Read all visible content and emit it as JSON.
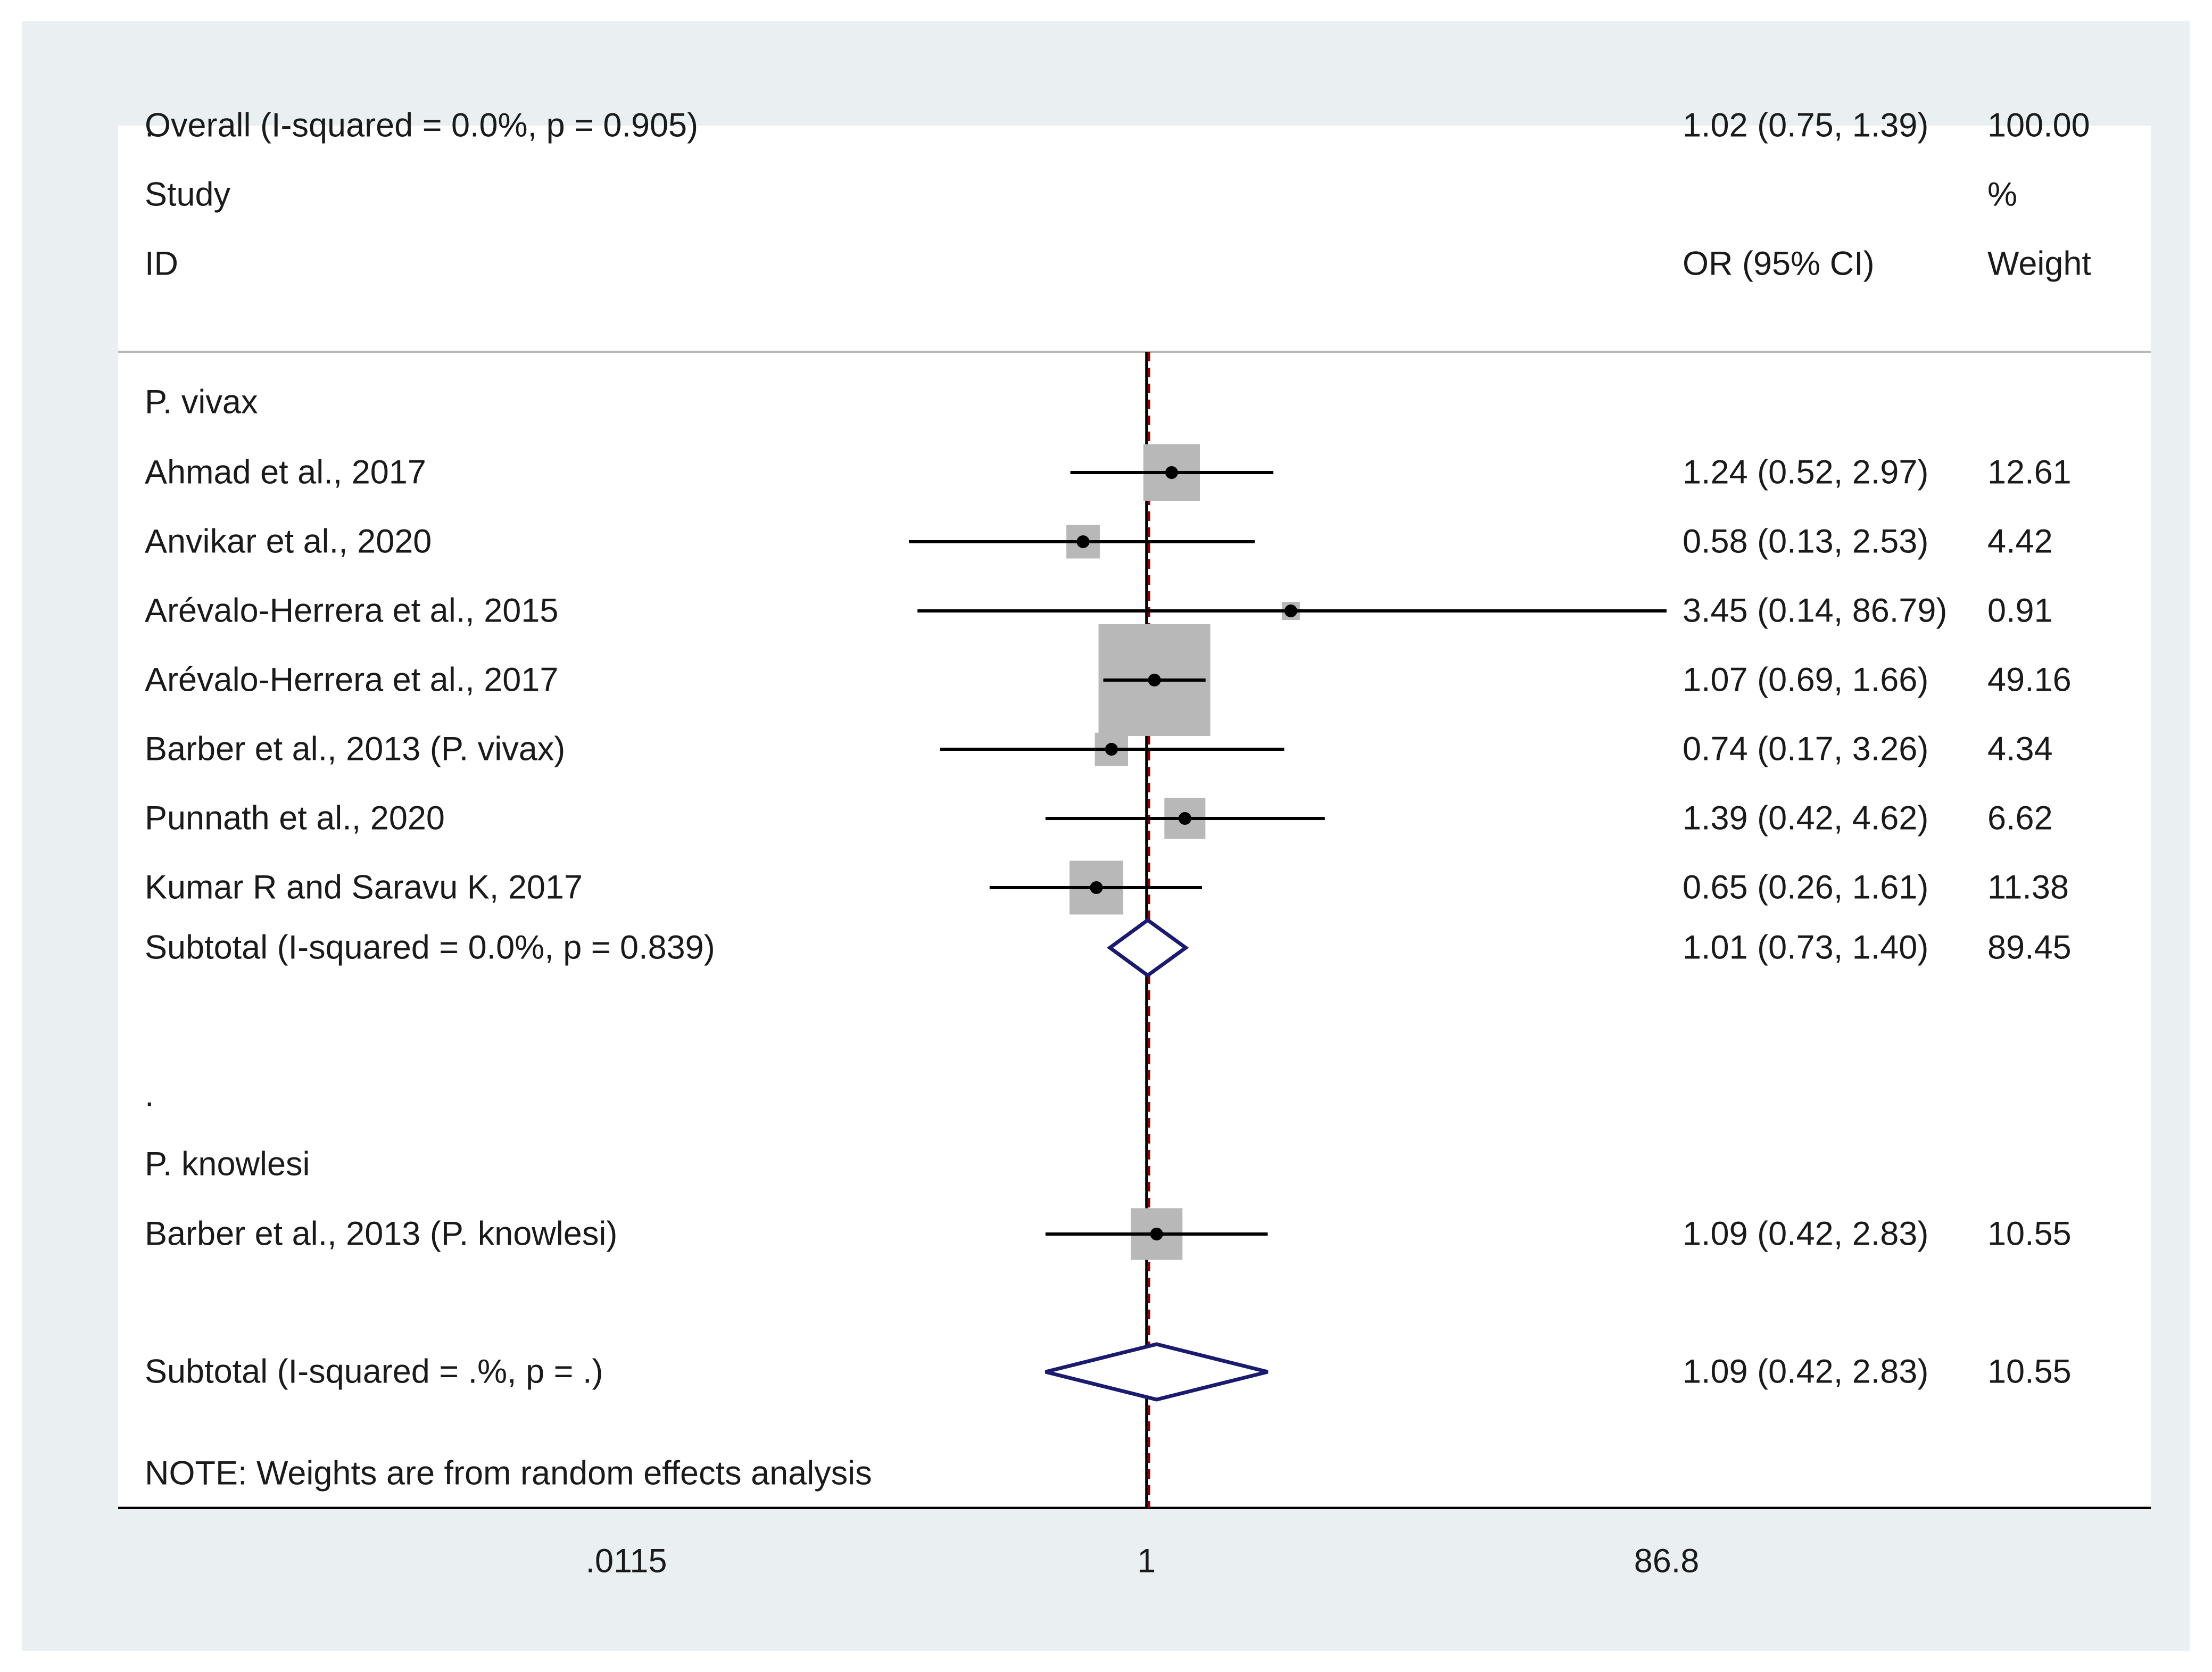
{
  "chart_data": {
    "type": "forest",
    "headers": {
      "study_line1": "Study",
      "study_line2": "ID",
      "estimate": "OR (95% CI)",
      "weight_line1": "%",
      "weight_line2": "Weight"
    },
    "x_axis": {
      "scale": "log",
      "range": [
        0.0115,
        86.8
      ],
      "ticks": [
        ".0115",
        "1",
        "86.8"
      ],
      "tick_values": [
        0.0115,
        1,
        86.8
      ],
      "null_line": 1
    },
    "pooled_estimate_line": 1.02,
    "rows": [
      {
        "kind": "group",
        "label": "P. vivax"
      },
      {
        "kind": "study",
        "label": "Ahmad et al., 2017",
        "or": 1.24,
        "lo": 0.52,
        "hi": 2.97,
        "ci_text": "1.24 (0.52, 2.97)",
        "weight": 12.61,
        "weight_text": "12.61"
      },
      {
        "kind": "study",
        "label": "Anvikar et al., 2020",
        "or": 0.58,
        "lo": 0.13,
        "hi": 2.53,
        "ci_text": "0.58 (0.13, 2.53)",
        "weight": 4.42,
        "weight_text": "4.42"
      },
      {
        "kind": "study",
        "label": "Arévalo-Herrera et al., 2015",
        "or": 3.45,
        "lo": 0.14,
        "hi": 86.79,
        "ci_text": "3.45 (0.14, 86.79)",
        "weight": 0.91,
        "weight_text": "0.91"
      },
      {
        "kind": "study",
        "label": "Arévalo-Herrera et al., 2017",
        "or": 1.07,
        "lo": 0.69,
        "hi": 1.66,
        "ci_text": "1.07 (0.69, 1.66)",
        "weight": 49.16,
        "weight_text": "49.16"
      },
      {
        "kind": "study",
        "label": "Barber et al., 2013 (P. vivax)",
        "or": 0.74,
        "lo": 0.17,
        "hi": 3.26,
        "ci_text": "0.74 (0.17, 3.26)",
        "weight": 4.34,
        "weight_text": "4.34"
      },
      {
        "kind": "study",
        "label": "Punnath et al., 2020",
        "or": 1.39,
        "lo": 0.42,
        "hi": 4.62,
        "ci_text": "1.39 (0.42, 4.62)",
        "weight": 6.62,
        "weight_text": "6.62"
      },
      {
        "kind": "study",
        "label": "Kumar R and Saravu K, 2017",
        "or": 0.65,
        "lo": 0.26,
        "hi": 1.61,
        "ci_text": "0.65 (0.26, 1.61)",
        "weight": 11.38,
        "weight_text": "11.38"
      },
      {
        "kind": "subtotal",
        "label": "Subtotal  (I-squared = 0.0%, p = 0.839)",
        "or": 1.01,
        "lo": 0.73,
        "hi": 1.4,
        "ci_text": "1.01 (0.73, 1.40)",
        "weight": 89.45,
        "weight_text": "89.45"
      },
      {
        "kind": "spacer",
        "label": "."
      },
      {
        "kind": "group",
        "label": "P. knowlesi"
      },
      {
        "kind": "study",
        "label": "Barber et al., 2013 (P. knowlesi)",
        "or": 1.09,
        "lo": 0.42,
        "hi": 2.83,
        "ci_text": "1.09 (0.42, 2.83)",
        "weight": 10.55,
        "weight_text": "10.55"
      },
      {
        "kind": "subtotal",
        "label": "Subtotal  (I-squared = .%, p = .)",
        "or": 1.09,
        "lo": 0.42,
        "hi": 2.83,
        "ci_text": "1.09 (0.42, 2.83)",
        "weight": 10.55,
        "weight_text": "10.55"
      },
      {
        "kind": "spacer",
        "label": "."
      },
      {
        "kind": "overall",
        "label": "Overall  (I-squared = 0.0%, p = 0.905)",
        "or": 1.02,
        "lo": 0.75,
        "hi": 1.39,
        "ci_text": "1.02 (0.75, 1.39)",
        "weight": 100.0,
        "weight_text": "100.00"
      }
    ],
    "note": "NOTE: Weights are from random effects analysis",
    "colors": {
      "background": "#eaf0f2",
      "panel": "#ffffff",
      "weight_box": "#b8b8b8",
      "ci_line": "#000000",
      "diamond": "#1a1a6e",
      "pooled_line": "#8b0000",
      "text": "#1a1a1a"
    }
  }
}
